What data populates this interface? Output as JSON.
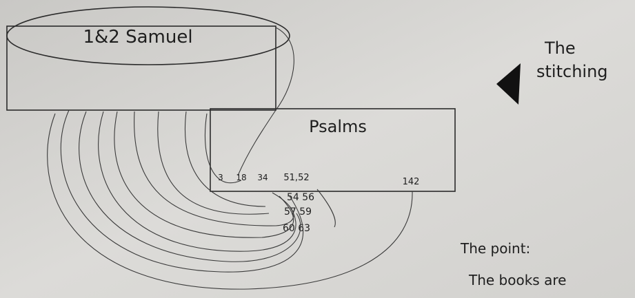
{
  "boxes": [
    {
      "label": "1&2 Samuel"
    },
    {
      "label": "Psalms",
      "refs": [
        "3",
        "18",
        "34",
        "51,52",
        "142"
      ]
    }
  ],
  "extra_refs": [
    "54 56",
    "57 59",
    "60 63"
  ],
  "side_note": {
    "lines": [
      "The",
      "stitching"
    ]
  },
  "point": {
    "lines": [
      "The point:",
      "The books are"
    ]
  }
}
